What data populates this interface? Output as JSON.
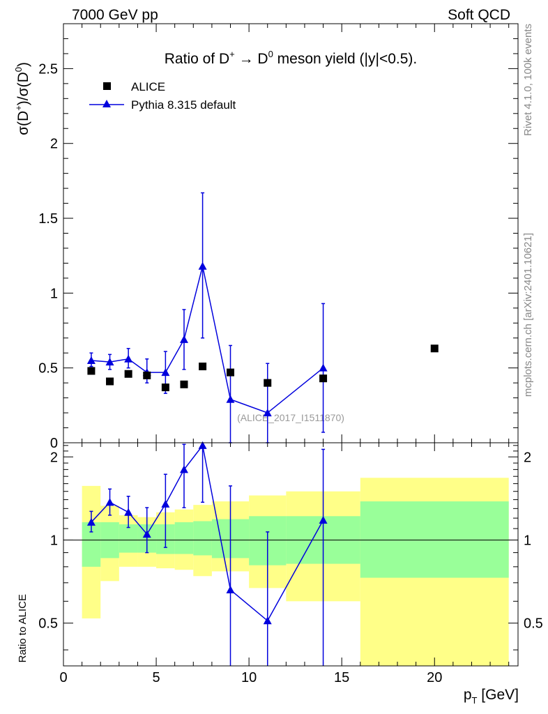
{
  "header": {
    "left": "7000 GeV pp",
    "right": "Soft QCD"
  },
  "side_labels": {
    "rivet": "Rivet 4.1.0,  100k events",
    "mcplots": "mcplots.cern.ch [arXiv:2401.10621]"
  },
  "colors": {
    "pythia": "#0000dd",
    "band_inner": "#99ff99",
    "band_outer": "#ffff88",
    "data": "#000000",
    "watermark": "#999999"
  },
  "chart_data": [
    {
      "type": "scatter",
      "panel": "main",
      "title_parts": [
        "Ratio of D",
        "+",
        " → D",
        "0",
        " meson yield (|y|<0.5)."
      ],
      "ylabel_parts": [
        "σ(D",
        "+",
        ")/σ(D",
        "0",
        ")"
      ],
      "watermark": "(ALICE_2017_I1511870)",
      "xlim": [
        0,
        24.5
      ],
      "ylim": [
        0,
        2.8
      ],
      "yticks": [
        0,
        0.5,
        1,
        1.5,
        2,
        2.5
      ],
      "ytick_labels": [
        "0",
        "0.5",
        "1",
        "1.5",
        "2",
        "2.5"
      ],
      "legend": [
        "ALICE",
        "Pythia 8.315 default"
      ],
      "series": [
        {
          "name": "ALICE",
          "marker": "square",
          "x": [
            1.5,
            2.5,
            3.5,
            4.5,
            5.5,
            6.5,
            7.5,
            9,
            11,
            14,
            20
          ],
          "y": [
            0.48,
            0.41,
            0.46,
            0.45,
            0.37,
            0.39,
            0.51,
            0.47,
            0.4,
            0.43,
            0.63
          ]
        },
        {
          "name": "Pythia 8.315 default",
          "marker": "triangle",
          "x": [
            1.5,
            2.5,
            3.5,
            4.5,
            5.5,
            6.5,
            7.5,
            9,
            11,
            14
          ],
          "y": [
            0.55,
            0.54,
            0.56,
            0.47,
            0.47,
            0.69,
            1.18,
            0.29,
            0.2,
            0.5
          ],
          "yerr_low": [
            0.51,
            0.49,
            0.5,
            0.4,
            0.33,
            0.49,
            0.7,
            0.0,
            0.0,
            0.07
          ],
          "yerr_high": [
            0.6,
            0.59,
            0.63,
            0.56,
            0.61,
            0.89,
            1.67,
            0.65,
            0.53,
            0.93
          ]
        }
      ]
    },
    {
      "type": "scatter",
      "panel": "ratio",
      "ylabel": "Ratio to ALICE",
      "xlabel_parts": [
        "p",
        "T",
        " [GeV]"
      ],
      "xlim": [
        0,
        24.5
      ],
      "ylim": [
        0.35,
        2.25
      ],
      "xticks": [
        0,
        5,
        10,
        15,
        20
      ],
      "xtick_labels": [
        "0",
        "5",
        "10",
        "15",
        "20"
      ],
      "yticks": [
        0.5,
        1,
        2
      ],
      "ytick_labels": [
        "0.5",
        "1",
        "2"
      ],
      "reference_line": 1,
      "bands": [
        {
          "x0": 1,
          "x1": 2,
          "inner": [
            0.8,
            1.16
          ],
          "outer": [
            0.52,
            1.57
          ]
        },
        {
          "x0": 2,
          "x1": 3,
          "inner": [
            0.86,
            1.16
          ],
          "outer": [
            0.71,
            1.33
          ]
        },
        {
          "x0": 3,
          "x1": 4,
          "inner": [
            0.9,
            1.14
          ],
          "outer": [
            0.8,
            1.23
          ]
        },
        {
          "x0": 4,
          "x1": 5,
          "inner": [
            0.9,
            1.14
          ],
          "outer": [
            0.8,
            1.21
          ]
        },
        {
          "x0": 5,
          "x1": 6,
          "inner": [
            0.89,
            1.14
          ],
          "outer": [
            0.79,
            1.26
          ]
        },
        {
          "x0": 6,
          "x1": 7,
          "inner": [
            0.89,
            1.16
          ],
          "outer": [
            0.78,
            1.29
          ]
        },
        {
          "x0": 7,
          "x1": 8,
          "inner": [
            0.88,
            1.17
          ],
          "outer": [
            0.74,
            1.34
          ]
        },
        {
          "x0": 8,
          "x1": 10,
          "inner": [
            0.86,
            1.19
          ],
          "outer": [
            0.77,
            1.38
          ]
        },
        {
          "x0": 10,
          "x1": 12,
          "inner": [
            0.81,
            1.22
          ],
          "outer": [
            0.67,
            1.45
          ]
        },
        {
          "x0": 12,
          "x1": 16,
          "inner": [
            0.82,
            1.22
          ],
          "outer": [
            0.6,
            1.5
          ]
        },
        {
          "x0": 16,
          "x1": 24,
          "inner": [
            0.73,
            1.38
          ],
          "outer": [
            0.3,
            1.68
          ]
        }
      ],
      "series": [
        {
          "name": "Pythia 8.315 default",
          "marker": "triangle",
          "x": [
            1.5,
            2.5,
            3.5,
            4.5,
            5.5,
            6.5,
            7.5,
            9,
            11,
            14
          ],
          "y": [
            1.16,
            1.37,
            1.26,
            1.05,
            1.35,
            1.8,
            2.2,
            0.66,
            0.51,
            1.18
          ],
          "yerr_low": [
            1.07,
            1.23,
            1.11,
            0.9,
            0.94,
            1.31,
            1.37,
            0.3,
            0.3,
            0.3
          ],
          "yerr_high": [
            1.27,
            1.53,
            1.44,
            1.31,
            1.73,
            2.22,
            2.4,
            1.57,
            1.07,
            2.13
          ]
        }
      ]
    }
  ]
}
